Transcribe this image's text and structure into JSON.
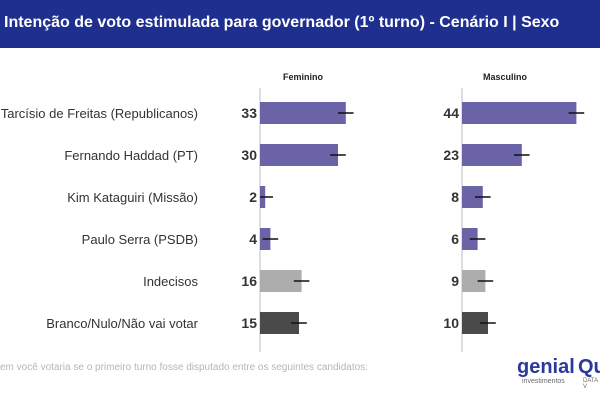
{
  "title": "Intenção de voto estimulada para governador (1º turno) - Cenário I | Sexo",
  "footnote": "em você votaria se o primeiro turno fosse disputado entre os seguintes candidatos:",
  "logos": {
    "genial": "genial",
    "genial_sub": "investimentos",
    "quaest": "Qu",
    "quaest_sub": "DATA V"
  },
  "colors": {
    "header": "#1f2f8f",
    "candidate": "#6b63a8",
    "undecided": "#adadad",
    "null": "#4a4a4a"
  },
  "chart_data": {
    "type": "bar",
    "orientation": "horizontal",
    "categories": [
      "Tarcísio de Freitas (Republicanos)",
      "Fernando Haddad (PT)",
      "Kim Kataguiri (Missão)",
      "Paulo Serra (PSDB)",
      "Indecisos",
      "Branco/Nulo/Não vai votar"
    ],
    "category_kinds": [
      "candidate",
      "candidate",
      "candidate",
      "candidate",
      "undecided",
      "null"
    ],
    "series": [
      {
        "name": "Feminino",
        "values": [
          33,
          30,
          2,
          4,
          16,
          15
        ]
      },
      {
        "name": "Masculino",
        "values": [
          44,
          23,
          8,
          6,
          9,
          10
        ]
      }
    ],
    "error_margin": 3,
    "unit": "%",
    "xlim": [
      0,
      50
    ]
  }
}
